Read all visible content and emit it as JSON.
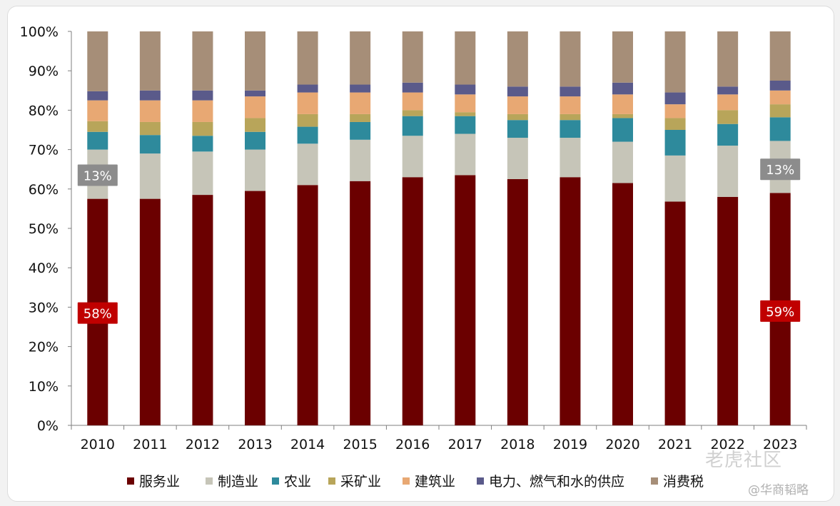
{
  "chart_data": {
    "type": "bar",
    "stacked": true,
    "categories": [
      "2010",
      "2011",
      "2012",
      "2013",
      "2014",
      "2015",
      "2016",
      "2017",
      "2018",
      "2019",
      "2020",
      "2021",
      "2022",
      "2023"
    ],
    "ylim": [
      0,
      100
    ],
    "y_ticks": [
      "0%",
      "10%",
      "20%",
      "30%",
      "40%",
      "50%",
      "60%",
      "70%",
      "80%",
      "90%",
      "100%"
    ],
    "grid": false,
    "legend_position": "bottom",
    "series": [
      {
        "name": "服务业",
        "color": "#6b0000",
        "values": [
          57.5,
          57.5,
          58.5,
          59.5,
          61.0,
          62.0,
          63.0,
          63.5,
          62.5,
          63.0,
          61.5,
          56.8,
          58.0,
          59.0
        ]
      },
      {
        "name": "制造业",
        "color": "#c6c5b8",
        "values": [
          12.5,
          11.5,
          11.0,
          10.5,
          10.5,
          10.5,
          10.5,
          10.5,
          10.5,
          10.0,
          10.5,
          11.7,
          13.0,
          13.2
        ]
      },
      {
        "name": "农业",
        "color": "#2e8a9c",
        "values": [
          4.5,
          4.7,
          4.0,
          4.5,
          4.3,
          4.5,
          5.0,
          4.5,
          4.5,
          4.5,
          6.0,
          6.5,
          5.5,
          6.0
        ]
      },
      {
        "name": "采矿业",
        "color": "#b8a55a",
        "values": [
          2.7,
          3.3,
          3.5,
          3.5,
          3.2,
          2.0,
          1.5,
          1.0,
          1.5,
          1.5,
          1.0,
          3.0,
          3.5,
          3.3
        ]
      },
      {
        "name": "建筑业",
        "color": "#e8a873",
        "values": [
          5.3,
          5.5,
          5.5,
          5.5,
          5.5,
          5.5,
          4.5,
          4.5,
          4.5,
          4.5,
          5.0,
          3.5,
          4.0,
          3.5
        ]
      },
      {
        "name": "电力、燃气和水的供应",
        "color": "#5a5a8a",
        "values": [
          2.3,
          2.5,
          2.5,
          1.5,
          2.0,
          2.0,
          2.5,
          2.5,
          2.5,
          2.5,
          3.0,
          3.0,
          2.0,
          2.5
        ]
      },
      {
        "name": "消费税",
        "color": "#a68e78",
        "values": [
          15.2,
          15.0,
          15.0,
          15.0,
          13.5,
          13.5,
          13.0,
          13.5,
          14.0,
          14.0,
          13.0,
          15.5,
          14.0,
          12.5
        ]
      }
    ],
    "annotations": [
      {
        "category": "2010",
        "label": "58%",
        "anchor_value": 28.5,
        "color": "#c00000"
      },
      {
        "category": "2010",
        "label": "13%",
        "anchor_value": 63.5,
        "color": "#8c8c8c"
      },
      {
        "category": "2023",
        "label": "59%",
        "anchor_value": 29.0,
        "color": "#c00000"
      },
      {
        "category": "2023",
        "label": "13%",
        "anchor_value": 65.0,
        "color": "#8c8c8c"
      }
    ]
  },
  "watermark": {
    "main": "老虎社区",
    "sub": "@华商韬略"
  }
}
